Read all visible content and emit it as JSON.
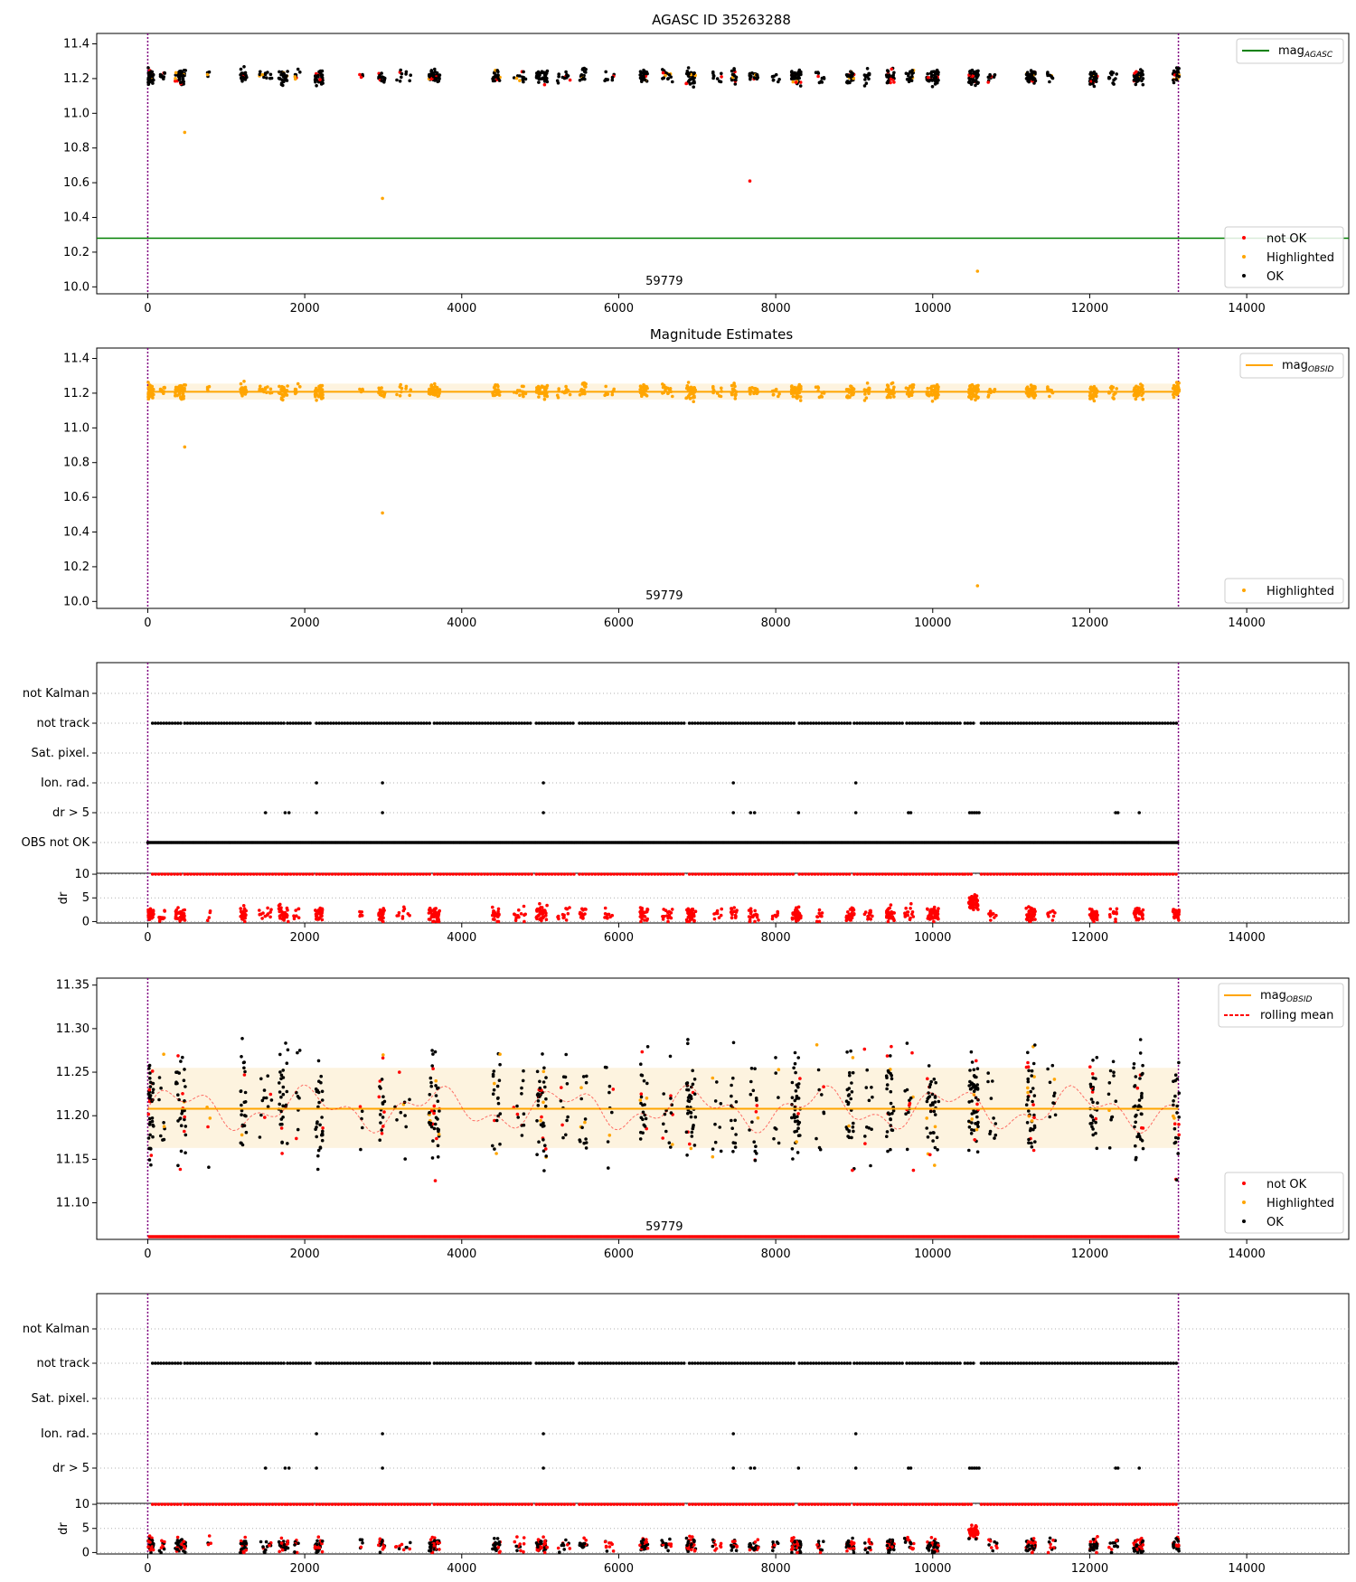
{
  "figure": {
    "title": "AGASC ID 35263288",
    "subtitle": "Magnitude Estimates"
  },
  "colors": {
    "ok": "#000000",
    "not_ok": "#ff0000",
    "highlighted": "#ffa500",
    "mag_agasc": "#008000",
    "mag_obsid": "#ffa500",
    "band": "#fdf3df",
    "time_markers": "#800080",
    "grid": "#b0b0b0"
  },
  "chart_data": [
    {
      "id": "panel1",
      "type": "scatter",
      "title": "AGASC ID 35263288",
      "xlim": [
        -650,
        15300
      ],
      "ylim": [
        9.96,
        11.46
      ],
      "xticks": [
        0,
        2000,
        4000,
        6000,
        8000,
        10000,
        12000,
        14000
      ],
      "yticks": [
        10.0,
        10.2,
        10.4,
        10.6,
        10.8,
        11.0,
        11.2,
        11.4
      ],
      "hlines": [
        {
          "name": "mag_AGASC",
          "y": 10.28
        }
      ],
      "vlines": [
        0,
        13130
      ],
      "annotation": "59779",
      "legend_lines": [
        {
          "label": "mag",
          "sub": "AGASC"
        }
      ],
      "legend_points": [
        "not OK",
        "Highlighted",
        "OK"
      ],
      "outliers": [
        {
          "x": 470,
          "y": 10.89,
          "status": "highlighted"
        },
        {
          "x": 2990,
          "y": 10.51,
          "status": "highlighted"
        },
        {
          "x": 7670,
          "y": 10.61,
          "status": "not_ok"
        },
        {
          "x": 10570,
          "y": 10.09,
          "status": "highlighted"
        }
      ]
    },
    {
      "id": "panel2",
      "type": "scatter",
      "title": "Magnitude Estimates",
      "xlim": [
        -650,
        15300
      ],
      "ylim": [
        9.96,
        11.46
      ],
      "xticks": [
        0,
        2000,
        4000,
        6000,
        8000,
        10000,
        12000,
        14000
      ],
      "yticks": [
        10.0,
        10.2,
        10.4,
        10.6,
        10.8,
        11.0,
        11.2,
        11.4
      ],
      "hlines": [
        {
          "name": "mag_OBSID",
          "y": 11.208
        }
      ],
      "band": [
        11.163,
        11.255
      ],
      "vlines": [
        0,
        13130
      ],
      "annotation": "59779",
      "legend_lines": [
        {
          "label": "mag",
          "sub": "OBSID"
        }
      ],
      "legend_points": [
        "Highlighted"
      ]
    },
    {
      "id": "panel3",
      "type": "scatter",
      "xlim": [
        -650,
        15300
      ],
      "categories": [
        "not Kalman",
        "not track",
        "Sat. pixel.",
        "Ion. rad.",
        "dr > 5",
        "OBS not OK"
      ],
      "flags": {
        "not track": "segments",
        "Ion. rad.": [
          2150,
          2990,
          5040,
          7460,
          9020
        ],
        "dr > 5": [
          1500,
          1750,
          1800,
          2150,
          2990,
          5040,
          7460,
          7680,
          7730,
          8290,
          9020,
          9690,
          9720,
          10470,
          10500,
          10530,
          10560,
          10590,
          12330,
          12360,
          12630
        ],
        "OBS not OK": "all"
      },
      "dr_panel": {
        "ylabel": "dr",
        "yticks": [
          0,
          5,
          10
        ],
        "ylim": [
          -0.3,
          10.2
        ]
      },
      "xticks": [
        0,
        2000,
        4000,
        6000,
        8000,
        10000,
        12000,
        14000
      ],
      "vlines": [
        0,
        13130
      ]
    },
    {
      "id": "panel4",
      "type": "scatter",
      "xlim": [
        -650,
        15300
      ],
      "ylim": [
        11.058,
        11.358
      ],
      "xticks": [
        0,
        2000,
        4000,
        6000,
        8000,
        10000,
        12000,
        14000
      ],
      "yticks": [
        11.1,
        11.15,
        11.2,
        11.25,
        11.3,
        11.35
      ],
      "hlines": [
        {
          "name": "mag_OBSID",
          "y": 11.208
        }
      ],
      "band": [
        11.163,
        11.255
      ],
      "vlines": [
        0,
        13130
      ],
      "annotation": "59779",
      "legend_lines": [
        {
          "label": "mag",
          "sub": "OBSID"
        },
        {
          "label": "rolling mean",
          "sub": ""
        }
      ],
      "legend_points": [
        "not OK",
        "Highlighted",
        "OK"
      ]
    },
    {
      "id": "panel5",
      "type": "scatter",
      "xlim": [
        -650,
        15300
      ],
      "categories": [
        "not Kalman",
        "not track",
        "Sat. pixel.",
        "Ion. rad.",
        "dr > 5"
      ],
      "flags": {
        "not track": "segments",
        "Ion. rad.": [
          2150,
          2990,
          5040,
          7460,
          9020
        ],
        "dr > 5": [
          1500,
          1750,
          1800,
          2150,
          2990,
          5040,
          7460,
          7680,
          7730,
          8290,
          9020,
          9690,
          9720,
          10470,
          10500,
          10530,
          10560,
          10590,
          12330,
          12360,
          12630
        ]
      },
      "dr_panel": {
        "ylabel": "dr",
        "yticks": [
          0,
          5,
          10
        ],
        "ylim": [
          -0.3,
          10.2
        ]
      },
      "xticks": [
        0,
        2000,
        4000,
        6000,
        8000,
        10000,
        12000,
        14000
      ],
      "vlines": [
        0,
        13130
      ]
    }
  ],
  "observation_clusters": [
    {
      "x": 40,
      "n": 40,
      "s": 35
    },
    {
      "x": 180,
      "n": 10,
      "s": 40
    },
    {
      "x": 420,
      "n": 35,
      "s": 70
    },
    {
      "x": 780,
      "n": 4,
      "s": 30
    },
    {
      "x": 1220,
      "n": 25,
      "s": 40
    },
    {
      "x": 1500,
      "n": 12,
      "s": 80
    },
    {
      "x": 1730,
      "n": 30,
      "s": 60
    },
    {
      "x": 1900,
      "n": 8,
      "s": 40
    },
    {
      "x": 2180,
      "n": 30,
      "s": 50
    },
    {
      "x": 2720,
      "n": 5,
      "s": 20
    },
    {
      "x": 2980,
      "n": 20,
      "s": 40
    },
    {
      "x": 3250,
      "n": 10,
      "s": 100
    },
    {
      "x": 3650,
      "n": 45,
      "s": 70
    },
    {
      "x": 4440,
      "n": 22,
      "s": 50
    },
    {
      "x": 4740,
      "n": 12,
      "s": 80
    },
    {
      "x": 5020,
      "n": 40,
      "s": 70
    },
    {
      "x": 5300,
      "n": 12,
      "s": 80
    },
    {
      "x": 5550,
      "n": 15,
      "s": 50
    },
    {
      "x": 5880,
      "n": 10,
      "s": 60
    },
    {
      "x": 6320,
      "n": 25,
      "s": 50
    },
    {
      "x": 6620,
      "n": 15,
      "s": 70
    },
    {
      "x": 6920,
      "n": 40,
      "s": 60
    },
    {
      "x": 7250,
      "n": 10,
      "s": 60
    },
    {
      "x": 7470,
      "n": 15,
      "s": 40
    },
    {
      "x": 7720,
      "n": 18,
      "s": 60
    },
    {
      "x": 8000,
      "n": 8,
      "s": 50
    },
    {
      "x": 8260,
      "n": 40,
      "s": 60
    },
    {
      "x": 8560,
      "n": 10,
      "s": 60
    },
    {
      "x": 8950,
      "n": 30,
      "s": 50
    },
    {
      "x": 9180,
      "n": 12,
      "s": 50
    },
    {
      "x": 9460,
      "n": 30,
      "s": 50
    },
    {
      "x": 9700,
      "n": 15,
      "s": 60
    },
    {
      "x": 10000,
      "n": 40,
      "s": 80
    },
    {
      "x": 10520,
      "n": 55,
      "s": 60
    },
    {
      "x": 10760,
      "n": 10,
      "s": 60
    },
    {
      "x": 11250,
      "n": 45,
      "s": 60
    },
    {
      "x": 11520,
      "n": 10,
      "s": 60
    },
    {
      "x": 12050,
      "n": 30,
      "s": 50
    },
    {
      "x": 12300,
      "n": 12,
      "s": 60
    },
    {
      "x": 12620,
      "n": 40,
      "s": 60
    },
    {
      "x": 13100,
      "n": 25,
      "s": 40
    }
  ],
  "track_segments": [
    [
      60,
      420
    ],
    [
      470,
      1190
    ],
    [
      1230,
      1750
    ],
    [
      1780,
      2100
    ],
    [
      2150,
      3600
    ],
    [
      3650,
      4900
    ],
    [
      4950,
      5440
    ],
    [
      5500,
      6850
    ],
    [
      6900,
      8250
    ],
    [
      8300,
      8970
    ],
    [
      9000,
      9640
    ],
    [
      9670,
      10030
    ],
    [
      10060,
      10380
    ],
    [
      10410,
      10520
    ],
    [
      10620,
      13130
    ]
  ]
}
